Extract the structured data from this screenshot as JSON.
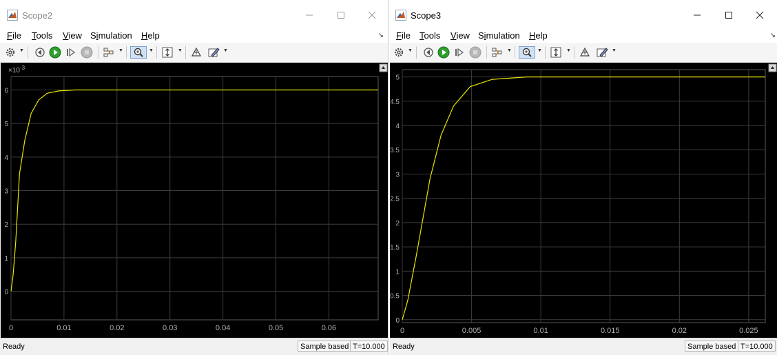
{
  "colors": {
    "plot_bg": "#000000",
    "grid": "#3c3c3c",
    "trace": "#e6e600",
    "axis_text": "#b0b0b0"
  },
  "menus": [
    {
      "label": "File",
      "key": "F"
    },
    {
      "label": "Tools",
      "key": "T"
    },
    {
      "label": "View",
      "key": "V"
    },
    {
      "label": "Simulation",
      "key": "i"
    },
    {
      "label": "Help",
      "key": "H"
    }
  ],
  "toolbar_icons": [
    "gear-icon",
    "step-back-icon",
    "run-icon",
    "step-forward-icon",
    "stop-icon",
    "highlight-icon",
    "zoom-icon",
    "autoscale-icon",
    "cursor-icon",
    "style-icon"
  ],
  "status": {
    "ready": "Ready",
    "mode": "Sample based",
    "time": "T=10.000"
  },
  "scopes": [
    {
      "title": "Scope2",
      "active": false,
      "chart_data": {
        "type": "line",
        "title": "",
        "xlabel": "",
        "ylabel": "",
        "exponent_label": "×10",
        "exponent_power": "-3",
        "xlim": [
          0,
          0.0693
        ],
        "ylim": [
          -0.00085,
          0.0064
        ],
        "xticks": [
          0,
          0.01,
          0.02,
          0.03,
          0.04,
          0.05,
          0.06
        ],
        "xtick_labels": [
          "0",
          "0.01",
          "0.02",
          "0.03",
          "0.04",
          "0.05",
          "0.06"
        ],
        "yticks": [
          0,
          0.001,
          0.002,
          0.003,
          0.004,
          0.005,
          0.006
        ],
        "ytick_labels": [
          "0",
          "1",
          "2",
          "3",
          "4",
          "5",
          "6"
        ],
        "grid": true,
        "series": [
          {
            "color": "#e6e600",
            "x": [
              0,
              0.0004,
              0.0009,
              0.0016,
              0.0026,
              0.0038,
              0.0052,
              0.0068,
              0.009,
              0.012,
              0.02,
              0.03,
              0.04,
              0.05,
              0.06,
              0.0693
            ],
            "y": [
              0,
              0.0005,
              0.0015,
              0.0035,
              0.0045,
              0.0053,
              0.0057,
              0.0059,
              0.00597,
              0.006,
              0.006,
              0.006,
              0.006,
              0.006,
              0.006,
              0.006
            ]
          }
        ]
      }
    },
    {
      "title": "Scope3",
      "active": true,
      "chart_data": {
        "type": "line",
        "title": "",
        "xlabel": "",
        "ylabel": "",
        "xlim": [
          0,
          0.0262
        ],
        "ylim": [
          -0.06,
          5.15
        ],
        "xticks": [
          0,
          0.005,
          0.01,
          0.015,
          0.02,
          0.025
        ],
        "xtick_labels": [
          "0",
          "0.005",
          "0.01",
          "0.015",
          "0.02",
          "0.025"
        ],
        "yticks": [
          0,
          0.5,
          1,
          1.5,
          2,
          2.5,
          3,
          3.5,
          4,
          4.5,
          5
        ],
        "ytick_labels": [
          "0",
          "0.5",
          "1",
          "1.5",
          "2",
          "2.5",
          "3",
          "3.5",
          "4",
          "4.5",
          "5"
        ],
        "grid": true,
        "series": [
          {
            "color": "#e6e600",
            "x": [
              0,
              0.0004,
              0.001,
              0.0015,
              0.002,
              0.0028,
              0.0037,
              0.0049,
              0.0065,
              0.009,
              0.012,
              0.018,
              0.0262
            ],
            "y": [
              0,
              0.4,
              1.3,
              2.1,
              2.9,
              3.8,
              4.4,
              4.8,
              4.95,
              5.0,
              5.0,
              5.0,
              5.0
            ]
          }
        ]
      }
    }
  ]
}
